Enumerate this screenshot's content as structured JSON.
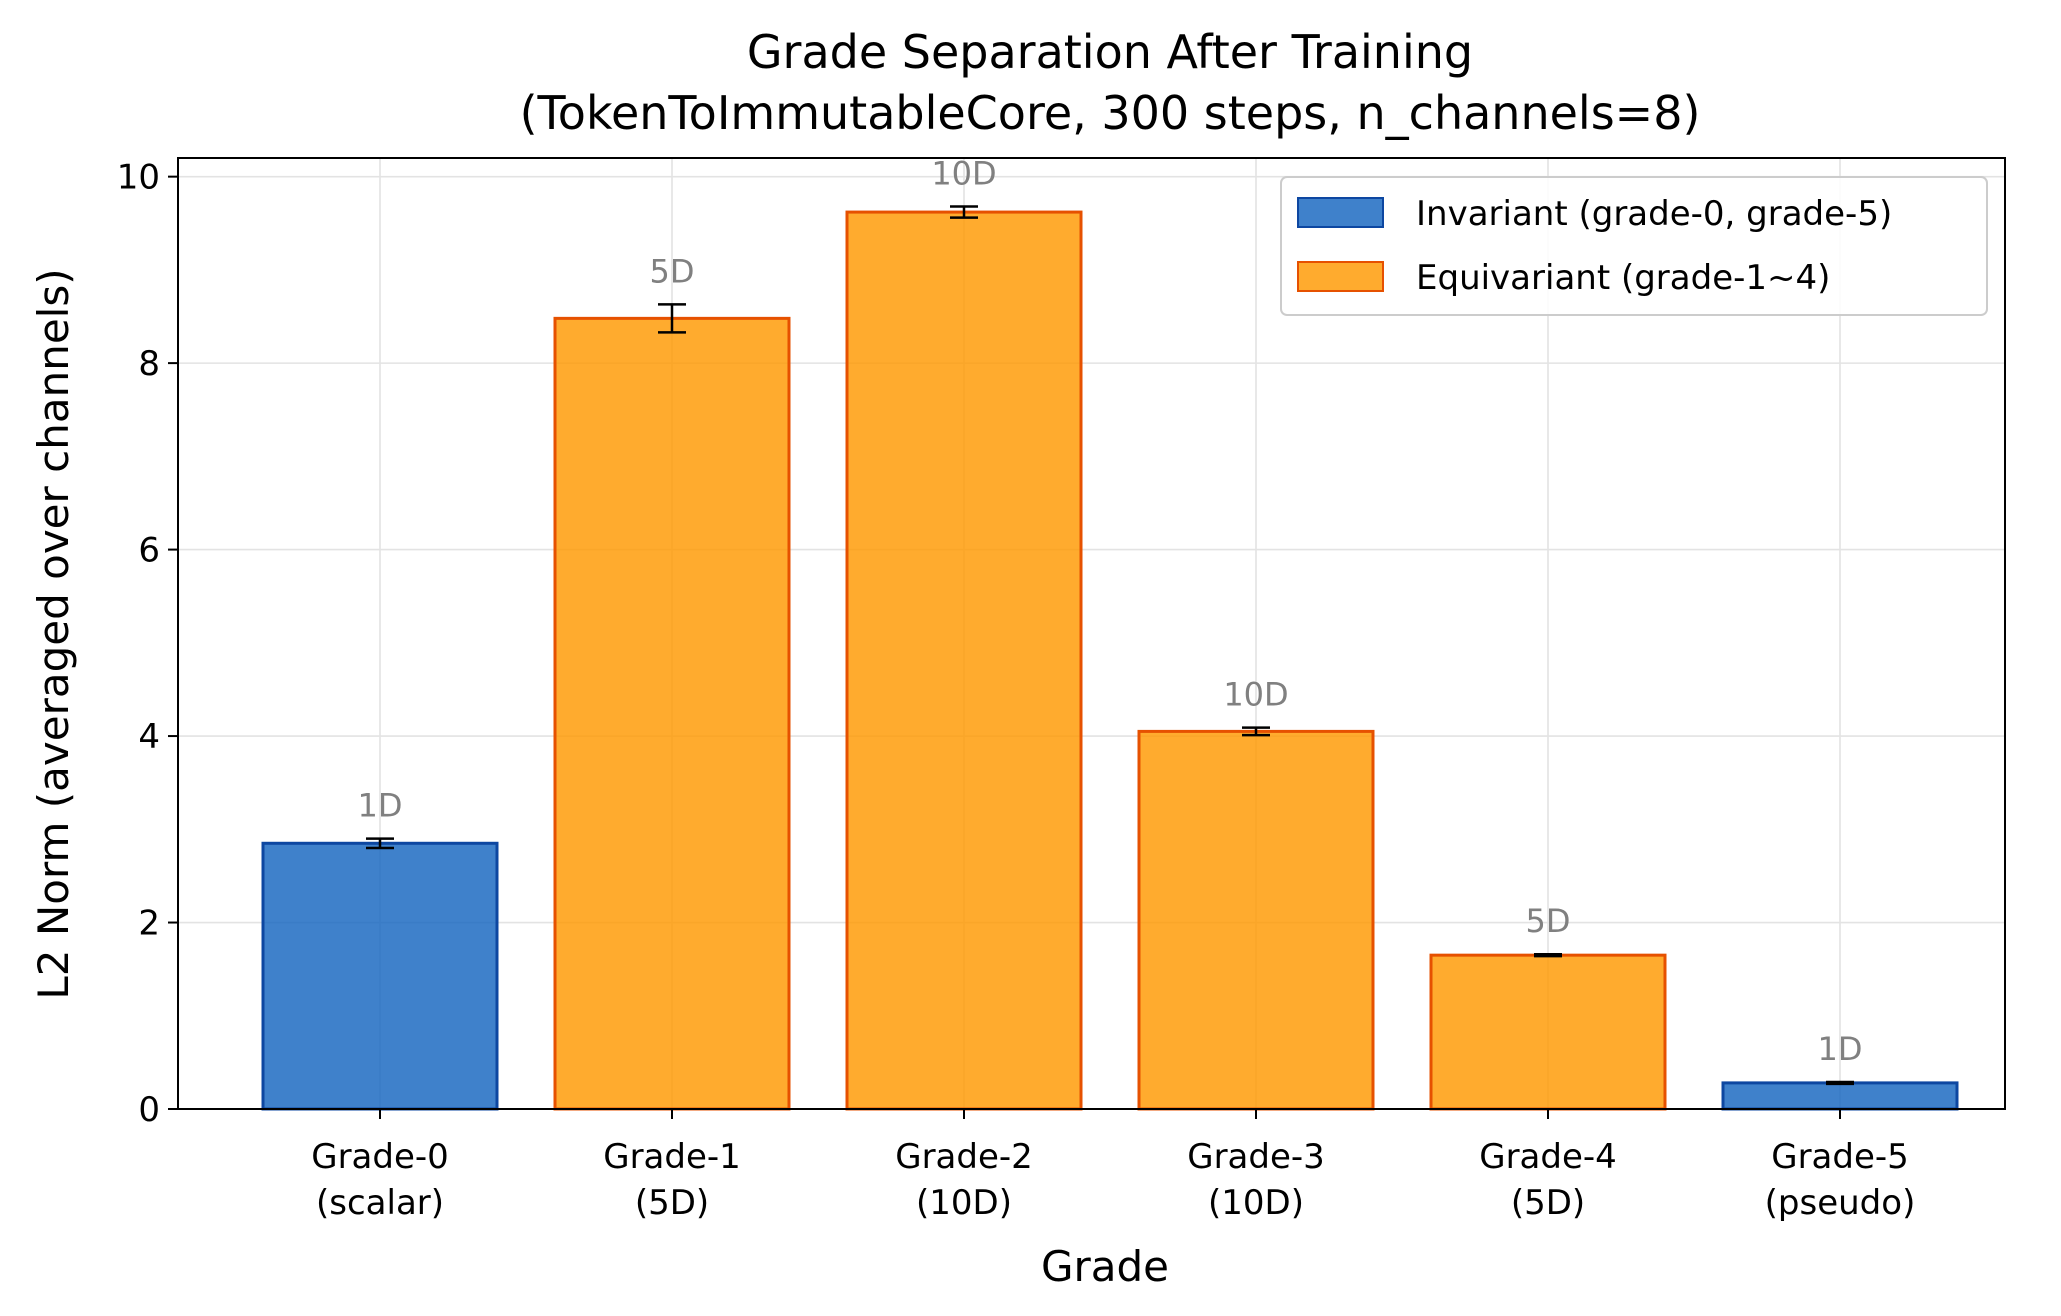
{
  "chart_data": {
    "type": "bar",
    "title": "Grade Separation After Training",
    "subtitle": "(TokenToImmutableCore, 300 steps, n_channels=8)",
    "xlabel": "Grade",
    "ylabel": "L2 Norm (averaged over channels)",
    "ylim": [
      0,
      10.2
    ],
    "yticks": [
      "0",
      "2",
      "4",
      "6",
      "8",
      "10"
    ],
    "grid": true,
    "legend_position": "top-right",
    "categories": [
      {
        "line1": "Grade-0",
        "line2": "(scalar)"
      },
      {
        "line1": "Grade-1",
        "line2": "(5D)"
      },
      {
        "line1": "Grade-2",
        "line2": "(10D)"
      },
      {
        "line1": "Grade-3",
        "line2": "(10D)"
      },
      {
        "line1": "Grade-4",
        "line2": "(5D)"
      },
      {
        "line1": "Grade-5",
        "line2": "(pseudo)"
      }
    ],
    "values": [
      2.85,
      8.48,
      9.62,
      4.05,
      1.65,
      0.28
    ],
    "errors": [
      0.05,
      0.15,
      0.06,
      0.04,
      0.01,
      0.01
    ],
    "dim_labels": [
      "1D",
      "5D",
      "10D",
      "10D",
      "5D",
      "1D"
    ],
    "groups": [
      "invariant",
      "equivariant",
      "equivariant",
      "equivariant",
      "equivariant",
      "invariant"
    ],
    "series": [
      {
        "key": "invariant",
        "name": "Invariant (grade-0, grade-5)",
        "fill": "#1565c0",
        "edge": "#0d47a1"
      },
      {
        "key": "equivariant",
        "name": "Equivariant (grade-1~4)",
        "fill": "#ff9800",
        "edge": "#e65100"
      }
    ]
  }
}
